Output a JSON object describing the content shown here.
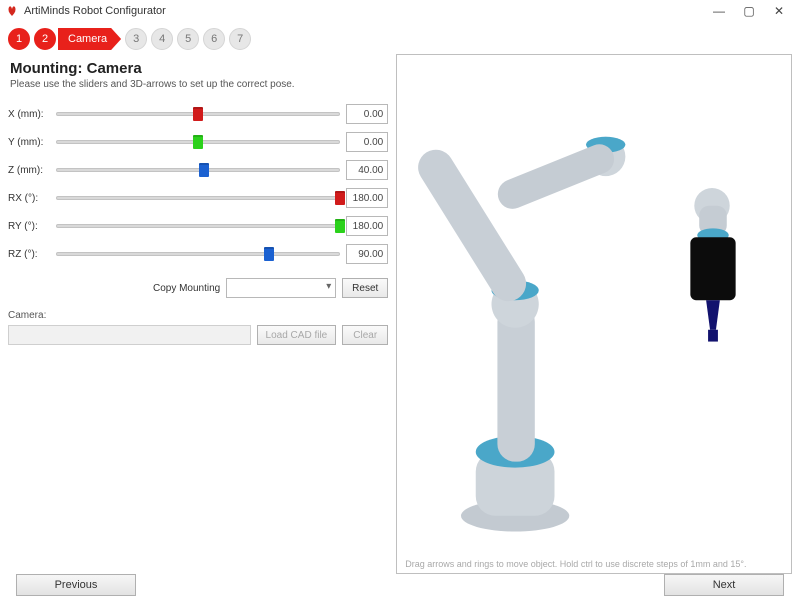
{
  "window": {
    "title": "ArtiMinds Robot Configurator",
    "close_glyph": "✕",
    "max_glyph": "▢",
    "min_glyph": "—"
  },
  "stepper": {
    "active_color": "#e8211b",
    "inactive_bg": "#e7e7e7",
    "steps": [
      {
        "label": "1",
        "active": true
      },
      {
        "label": "2",
        "active": true
      },
      {
        "name": "Camera",
        "chip": true
      },
      {
        "label": "3",
        "active": false
      },
      {
        "label": "4",
        "active": false
      },
      {
        "label": "5",
        "active": false
      },
      {
        "label": "6",
        "active": false
      },
      {
        "label": "7",
        "active": false
      }
    ]
  },
  "panel": {
    "title": "Mounting: Camera",
    "subtitle": "Please use the sliders and 3D-arrows to set up the correct pose."
  },
  "sliders": [
    {
      "id": "x",
      "label": "X (mm):",
      "value": "0.00",
      "pos_pct": 50,
      "thumb_color": "#d11b1b"
    },
    {
      "id": "y",
      "label": "Y (mm):",
      "value": "0.00",
      "pos_pct": 50,
      "thumb_color": "#2bd11b"
    },
    {
      "id": "z",
      "label": "Z (mm):",
      "value": "40.00",
      "pos_pct": 52,
      "thumb_color": "#1b61d1"
    },
    {
      "id": "rx",
      "label": "RX (°):",
      "value": "180.00",
      "pos_pct": 100,
      "thumb_color": "#d11b1b"
    },
    {
      "id": "ry",
      "label": "RY (°):",
      "value": "180.00",
      "pos_pct": 100,
      "thumb_color": "#2bd11b"
    },
    {
      "id": "rz",
      "label": "RZ (°):",
      "value": "90.00",
      "pos_pct": 75,
      "thumb_color": "#1b61d1"
    }
  ],
  "copy": {
    "label": "Copy Mounting",
    "reset_label": "Reset"
  },
  "camera": {
    "label": "Camera:",
    "load_label": "Load CAD file",
    "clear_label": "Clear"
  },
  "viewport": {
    "hint": "Drag arrows and rings to move object. Hold ctrl to use discrete steps of 1mm and 15°.",
    "robot_body_color": "#b8bfc6",
    "robot_joint_color": "#4aa7c9",
    "camera_color": "#0c0c0c",
    "camera_tip_color": "#12126e"
  },
  "footer": {
    "prev": "Previous",
    "next": "Next"
  }
}
